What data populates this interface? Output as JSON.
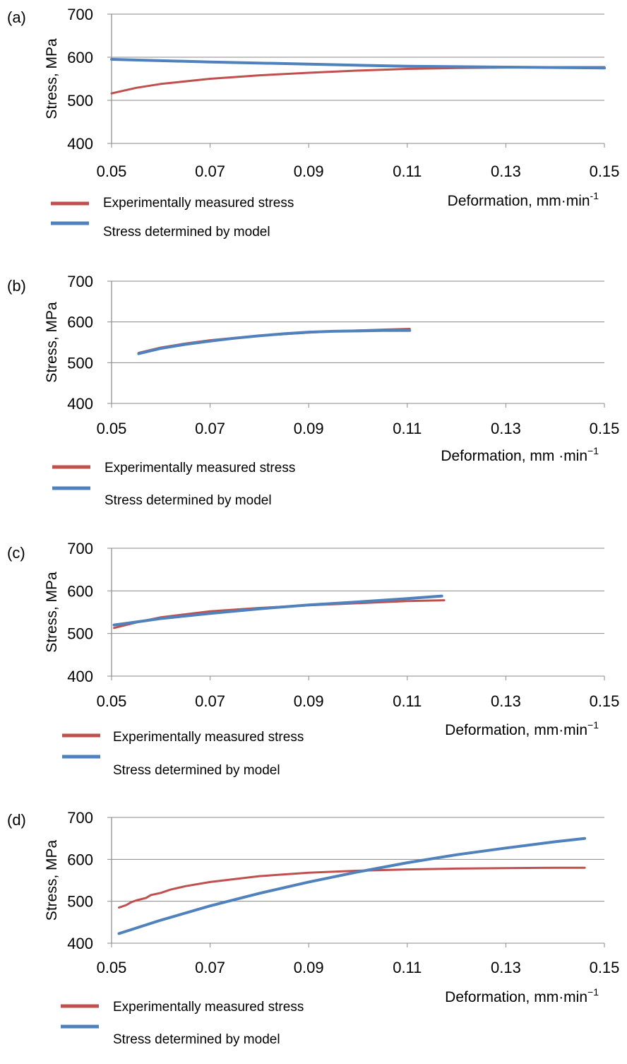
{
  "chart_data": [
    {
      "type": "line",
      "panel_label": "(a)",
      "xlabel": "Deformation, mm·min",
      "xlabel_sup": "-1",
      "ylabel": "Stress, MPa",
      "xlim": [
        0.05,
        0.15
      ],
      "ylim": [
        400,
        700
      ],
      "x_ticks": [
        "0.05",
        "0.07",
        "0.09",
        "0.11",
        "0.13",
        "0.15"
      ],
      "y_ticks": [
        "400",
        "500",
        "600",
        "700"
      ],
      "grid": true,
      "legend_position": "bottom-left",
      "series": [
        {
          "name": "Experimentally measured stress",
          "color": "#c0504d",
          "x": [
            0.05,
            0.055,
            0.06,
            0.07,
            0.08,
            0.09,
            0.1,
            0.11,
            0.12,
            0.13,
            0.14,
            0.15
          ],
          "y": [
            516,
            529,
            538,
            550,
            558,
            564,
            569,
            573,
            575,
            576,
            577,
            577
          ]
        },
        {
          "name": "Stress determined by model",
          "color": "#4f81bd",
          "x": [
            0.05,
            0.07,
            0.09,
            0.11,
            0.13,
            0.15
          ],
          "y": [
            595,
            589,
            584,
            579,
            577,
            575
          ]
        }
      ]
    },
    {
      "type": "line",
      "panel_label": "(b)",
      "xlabel": "Deformation,  mm ·min",
      "xlabel_sup": "−1",
      "ylabel": "Stress, MPa",
      "xlim": [
        0.05,
        0.15
      ],
      "ylim": [
        400,
        700
      ],
      "x_ticks": [
        "0.05",
        "0.07",
        "0.09",
        "0.11",
        "0.13",
        "0.15"
      ],
      "y_ticks": [
        "400",
        "500",
        "600",
        "700"
      ],
      "grid": true,
      "legend_position": "bottom-left",
      "series": [
        {
          "name": "Experimentally measured stress",
          "color": "#c0504d",
          "x": [
            0.0555,
            0.06,
            0.065,
            0.07,
            0.075,
            0.08,
            0.085,
            0.09,
            0.095,
            0.1,
            0.105,
            0.1105
          ],
          "y": [
            524,
            537,
            547,
            555,
            561,
            566,
            570,
            574,
            577,
            579,
            581,
            583
          ]
        },
        {
          "name": "Stress determined by model",
          "color": "#4f81bd",
          "x": [
            0.0555,
            0.06,
            0.065,
            0.07,
            0.075,
            0.08,
            0.085,
            0.09,
            0.095,
            0.1,
            0.105,
            0.1105
          ],
          "y": [
            522,
            535,
            545,
            553,
            560,
            566,
            571,
            575,
            577,
            578,
            579,
            579
          ]
        }
      ]
    },
    {
      "type": "line",
      "panel_label": "(c)",
      "xlabel": "Deformation, mm·min",
      "xlabel_sup": "−1",
      "ylabel": "Stress, MPa",
      "xlim": [
        0.05,
        0.15
      ],
      "ylim": [
        400,
        700
      ],
      "x_ticks": [
        "0.05",
        "0.07",
        "0.09",
        "0.11",
        "0.13",
        "0.15"
      ],
      "y_ticks": [
        "400",
        "500",
        "600",
        "700"
      ],
      "grid": true,
      "legend_position": "bottom-left",
      "series": [
        {
          "name": "Experimentally measured stress",
          "color": "#c0504d",
          "x": [
            0.0505,
            0.055,
            0.06,
            0.07,
            0.08,
            0.09,
            0.1,
            0.11,
            0.1175
          ],
          "y": [
            513,
            526,
            538,
            552,
            560,
            566,
            571,
            576,
            578
          ]
        },
        {
          "name": "Stress determined by model",
          "color": "#4f81bd",
          "x": [
            0.0505,
            0.055,
            0.06,
            0.07,
            0.08,
            0.09,
            0.1,
            0.11,
            0.117
          ],
          "y": [
            520,
            527,
            535,
            547,
            558,
            567,
            574,
            582,
            588
          ]
        }
      ]
    },
    {
      "type": "line",
      "panel_label": "(d)",
      "xlabel": "Deformation, mm·min",
      "xlabel_sup": "−1",
      "ylabel": "Stress, MPa",
      "xlim": [
        0.05,
        0.15
      ],
      "ylim": [
        400,
        700
      ],
      "x_ticks": [
        "0.05",
        "0.07",
        "0.09",
        "0.11",
        "0.13",
        "0.15"
      ],
      "y_ticks": [
        "400",
        "500",
        "600",
        "700"
      ],
      "grid": true,
      "legend_position": "bottom-left",
      "series": [
        {
          "name": "Experimentally measured stress",
          "color": "#c0504d",
          "x": [
            0.0515,
            0.053,
            0.054,
            0.055,
            0.057,
            0.058,
            0.06,
            0.062,
            0.065,
            0.07,
            0.08,
            0.09,
            0.1,
            0.11,
            0.12,
            0.13,
            0.14,
            0.146
          ],
          "y": [
            485,
            491,
            498,
            502,
            508,
            515,
            520,
            528,
            536,
            546,
            560,
            568,
            573,
            576,
            578,
            579,
            580,
            580
          ]
        },
        {
          "name": "Stress determined by model",
          "color": "#4f81bd",
          "x": [
            0.0515,
            0.06,
            0.07,
            0.08,
            0.09,
            0.1,
            0.11,
            0.12,
            0.13,
            0.14,
            0.146
          ],
          "y": [
            423,
            455,
            489,
            519,
            546,
            570,
            592,
            611,
            627,
            642,
            650
          ]
        }
      ]
    }
  ]
}
